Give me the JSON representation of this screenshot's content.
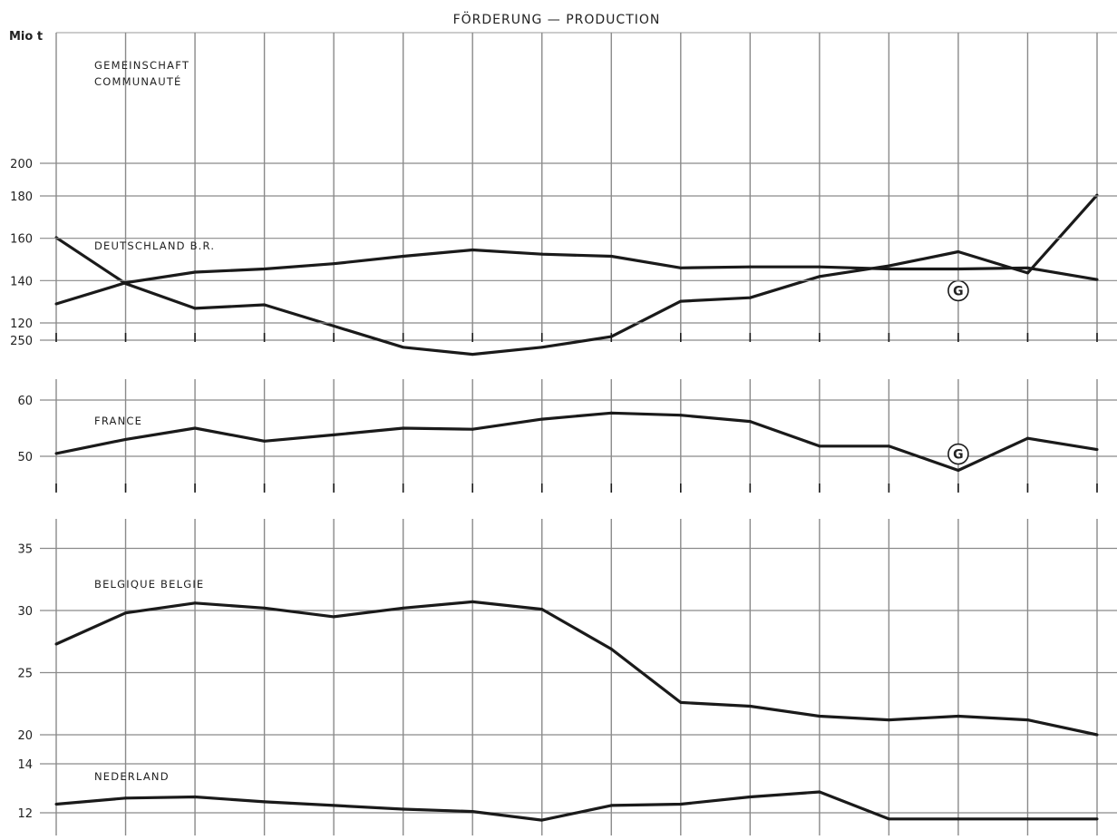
{
  "header": {
    "title": "FÖRDERUNG — PRODUCTION",
    "unit": "Mio t"
  },
  "colors": {
    "line": "#1a1a1a",
    "grid": "#8a8a8a",
    "frame": "#9a9a9a",
    "text": "#222222",
    "background": "#ffffff"
  },
  "chart_data": [
    {
      "type": "line",
      "panel_label": [
        "GEMEINSCHAFT",
        "COMMUNAUTÉ"
      ],
      "ylim": [
        185,
        252
      ],
      "yticks": [
        200,
        250
      ],
      "x": [
        1,
        2,
        3,
        4,
        5,
        6,
        7,
        8,
        9,
        10,
        11,
        12,
        13,
        14,
        15,
        16
      ],
      "values": [
        221,
        234,
        241,
        240,
        246,
        252,
        254,
        252,
        249,
        239,
        238,
        232,
        229,
        225,
        231,
        209
      ],
      "annotations": [
        {
          "x": 14,
          "value": 236,
          "text": "G"
        }
      ]
    },
    {
      "type": "line",
      "panel_label": [
        "DEUTSCHLAND B.R."
      ],
      "ylim": [
        116,
        184
      ],
      "yticks": [
        120,
        140,
        160,
        180
      ],
      "x": [
        1,
        2,
        3,
        4,
        5,
        6,
        7,
        8,
        9,
        10,
        11,
        12,
        13,
        14,
        15,
        16
      ],
      "values": [
        129,
        139,
        144,
        145.5,
        148,
        151.5,
        154.5,
        152.5,
        151.5,
        146,
        146.5,
        146.5,
        145.5,
        145.5,
        146,
        140.5
      ],
      "annotations": []
    },
    {
      "type": "line",
      "panel_label": [
        "FRANCE"
      ],
      "ylim": [
        45,
        65
      ],
      "yticks": [
        50,
        60
      ],
      "x": [
        1,
        2,
        3,
        4,
        5,
        6,
        7,
        8,
        9,
        10,
        11,
        12,
        13,
        14,
        15,
        16
      ],
      "values": [
        50.5,
        53,
        55,
        52.7,
        53.8,
        55,
        54.8,
        56.6,
        57.7,
        57.3,
        56.2,
        51.8,
        51.8,
        47.5,
        53.2,
        51.2
      ],
      "annotations": [
        {
          "x": 14,
          "value": 50.4,
          "text": "G"
        }
      ]
    },
    {
      "type": "line",
      "panel_label": [
        "BELGIQUE BELGIE"
      ],
      "ylim": [
        20,
        36.5
      ],
      "yticks": [
        20,
        25,
        30,
        35
      ],
      "x": [
        1,
        2,
        3,
        4,
        5,
        6,
        7,
        8,
        9,
        10,
        11,
        12,
        13,
        14,
        15,
        16
      ],
      "values": [
        27.3,
        29.8,
        30.6,
        30.2,
        29.5,
        30.2,
        30.7,
        30.1,
        26.9,
        22.6,
        22.3,
        21.5,
        21.2,
        21.5,
        21.2,
        20
      ],
      "annotations": []
    },
    {
      "type": "line",
      "panel_label": [
        "NEDERLAND"
      ],
      "ylim": [
        11.5,
        14.5
      ],
      "yticks": [
        12,
        14
      ],
      "x": [
        1,
        2,
        3,
        4,
        5,
        6,
        7,
        8,
        9,
        10,
        11,
        12,
        13,
        14,
        15,
        16
      ],
      "values": [
        12.35,
        12.6,
        12.65,
        12.45,
        12.3,
        12.15,
        12.05,
        11.7,
        12.3,
        12.35,
        12.65,
        12.85,
        11.75,
        11.75,
        11.75,
        11.75
      ],
      "annotations": []
    }
  ]
}
